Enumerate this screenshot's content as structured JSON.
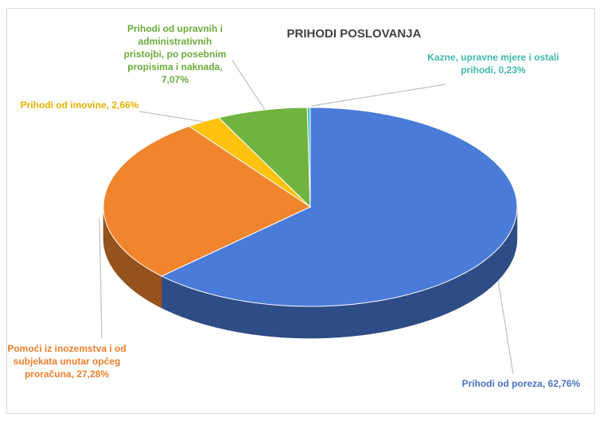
{
  "chart_data": {
    "type": "pie",
    "title": "PRIHODI POSLOVANJA",
    "categories": [
      "Prihodi od poreza",
      "Pomoći iz inozemstva i od subjekata unutar općeg proračuna",
      "Prihodi od imovine",
      "Prihodi od upravnih i administrativnih pristojbi, po posebnim propisima i naknada",
      "Kazne, upravne mjere i ostali prihodi"
    ],
    "values": [
      62.76,
      27.28,
      2.66,
      7.07,
      0.23
    ],
    "value_labels": [
      "62,76%",
      "27,28%",
      "2,66%",
      "7,07%",
      "0,23%"
    ],
    "label_separator": ", ",
    "colors": [
      "#4a7bd8",
      "#f0852d",
      "#ffc20e",
      "#6fb440",
      "#4bc4b8"
    ],
    "label_colors": [
      "#4a72c4",
      "#ee7d2a",
      "#e8b000",
      "#6aab3a",
      "#3fb8ac"
    ]
  }
}
